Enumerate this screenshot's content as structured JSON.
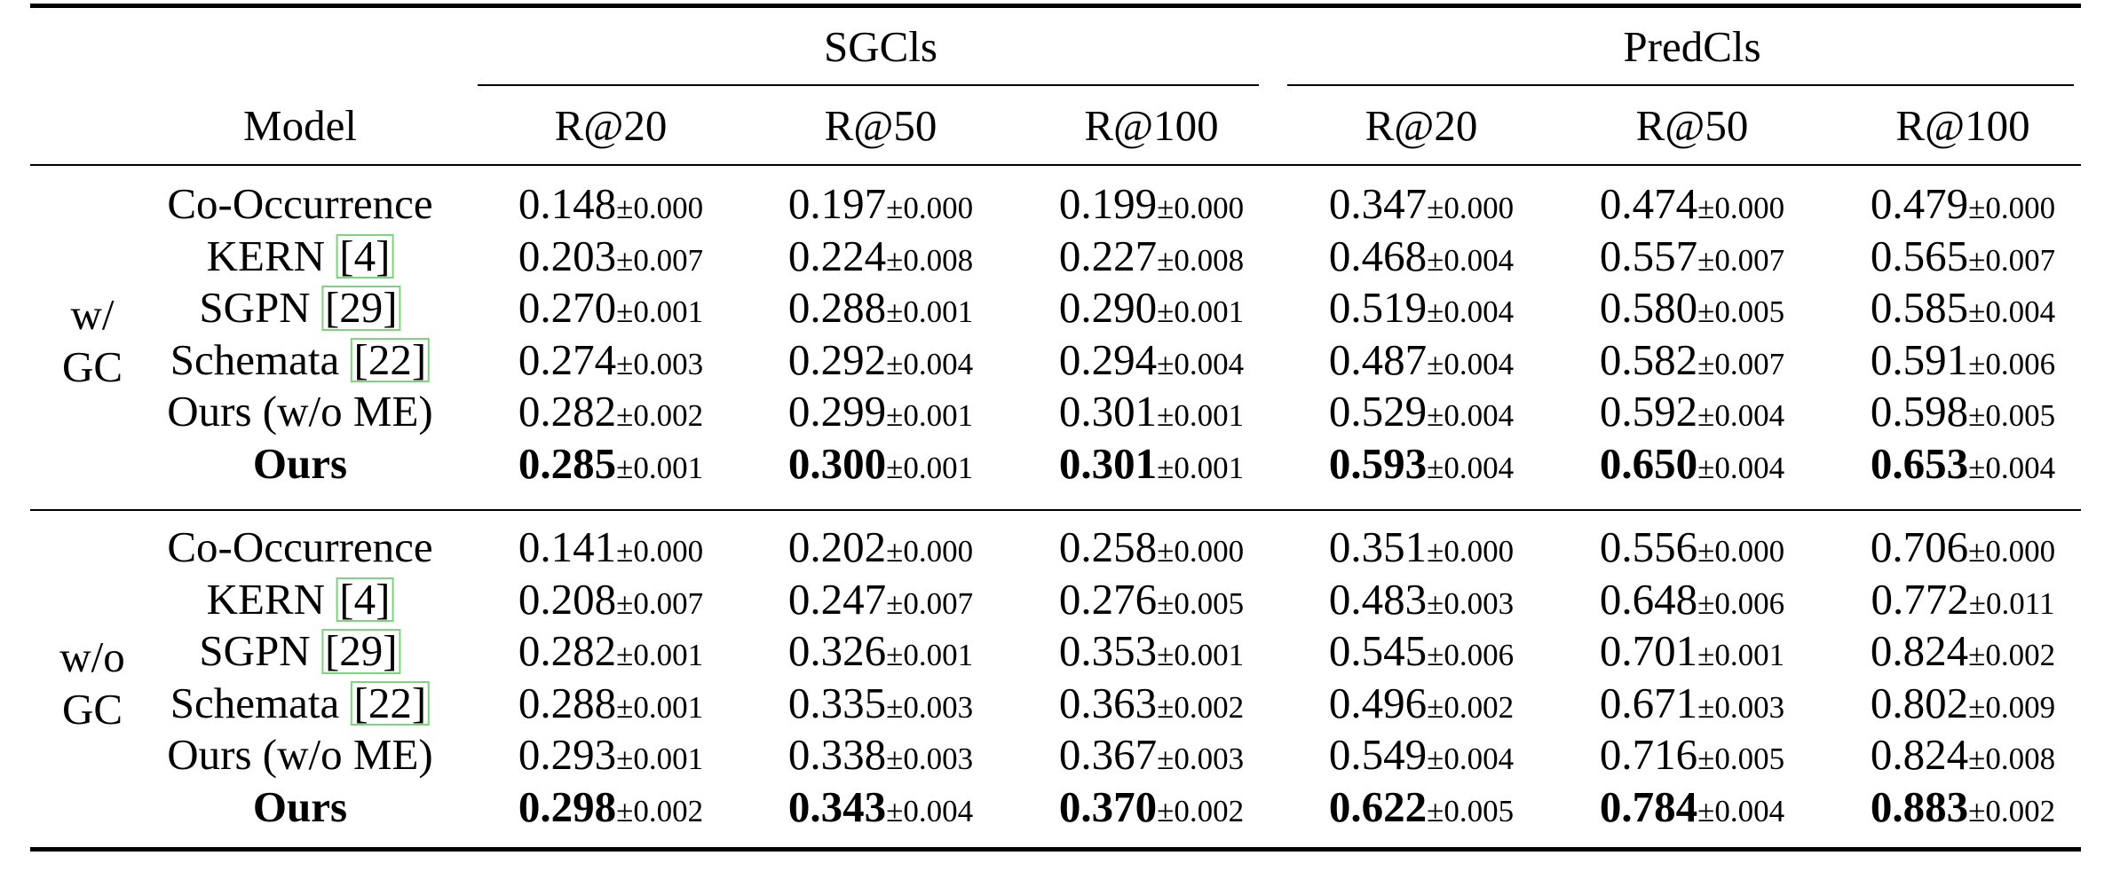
{
  "table": {
    "groups": [
      {
        "label": "SGCls",
        "columns": [
          "R@20",
          "R@50",
          "R@100"
        ]
      },
      {
        "label": "PredCls",
        "columns": [
          "R@20",
          "R@50",
          "R@100"
        ]
      }
    ],
    "model_header": "Model",
    "sections": [
      {
        "group_line1": "w/",
        "group_line2": "GC",
        "rows": [
          {
            "model": "Co-Occurrence",
            "cite": "",
            "bold": false,
            "values": [
              [
                "0.148",
                "±0.000"
              ],
              [
                "0.197",
                "±0.000"
              ],
              [
                "0.199",
                "±0.000"
              ],
              [
                "0.347",
                "±0.000"
              ],
              [
                "0.474",
                "±0.000"
              ],
              [
                "0.479",
                "±0.000"
              ]
            ]
          },
          {
            "model": "KERN ",
            "cite": "4",
            "bold": false,
            "values": [
              [
                "0.203",
                "±0.007"
              ],
              [
                "0.224",
                "±0.008"
              ],
              [
                "0.227",
                "±0.008"
              ],
              [
                "0.468",
                "±0.004"
              ],
              [
                "0.557",
                "±0.007"
              ],
              [
                "0.565",
                "±0.007"
              ]
            ]
          },
          {
            "model": "SGPN ",
            "cite": "29",
            "bold": false,
            "values": [
              [
                "0.270",
                "±0.001"
              ],
              [
                "0.288",
                "±0.001"
              ],
              [
                "0.290",
                "±0.001"
              ],
              [
                "0.519",
                "±0.004"
              ],
              [
                "0.580",
                "±0.005"
              ],
              [
                "0.585",
                "±0.004"
              ]
            ]
          },
          {
            "model": "Schemata ",
            "cite": "22",
            "bold": false,
            "values": [
              [
                "0.274",
                "±0.003"
              ],
              [
                "0.292",
                "±0.004"
              ],
              [
                "0.294",
                "±0.004"
              ],
              [
                "0.487",
                "±0.004"
              ],
              [
                "0.582",
                "±0.007"
              ],
              [
                "0.591",
                "±0.006"
              ]
            ]
          },
          {
            "model": "Ours (w/o ME)",
            "cite": "",
            "bold": false,
            "values": [
              [
                "0.282",
                "±0.002"
              ],
              [
                "0.299",
                "±0.001"
              ],
              [
                "0.301",
                "±0.001"
              ],
              [
                "0.529",
                "±0.004"
              ],
              [
                "0.592",
                "±0.004"
              ],
              [
                "0.598",
                "±0.005"
              ]
            ]
          },
          {
            "model": "Ours",
            "cite": "",
            "bold": true,
            "values": [
              [
                "0.285",
                "±0.001"
              ],
              [
                "0.300",
                "±0.001"
              ],
              [
                "0.301",
                "±0.001"
              ],
              [
                "0.593",
                "±0.004"
              ],
              [
                "0.650",
                "±0.004"
              ],
              [
                "0.653",
                "±0.004"
              ]
            ]
          }
        ]
      },
      {
        "group_line1": "w/o",
        "group_line2": "GC",
        "rows": [
          {
            "model": "Co-Occurrence",
            "cite": "",
            "bold": false,
            "values": [
              [
                "0.141",
                "±0.000"
              ],
              [
                "0.202",
                "±0.000"
              ],
              [
                "0.258",
                "±0.000"
              ],
              [
                "0.351",
                "±0.000"
              ],
              [
                "0.556",
                "±0.000"
              ],
              [
                "0.706",
                "±0.000"
              ]
            ]
          },
          {
            "model": "KERN ",
            "cite": "4",
            "bold": false,
            "values": [
              [
                "0.208",
                "±0.007"
              ],
              [
                "0.247",
                "±0.007"
              ],
              [
                "0.276",
                "±0.005"
              ],
              [
                "0.483",
                "±0.003"
              ],
              [
                "0.648",
                "±0.006"
              ],
              [
                "0.772",
                "±0.011"
              ]
            ]
          },
          {
            "model": "SGPN ",
            "cite": "29",
            "bold": false,
            "values": [
              [
                "0.282",
                "±0.001"
              ],
              [
                "0.326",
                "±0.001"
              ],
              [
                "0.353",
                "±0.001"
              ],
              [
                "0.545",
                "±0.006"
              ],
              [
                "0.701",
                "±0.001"
              ],
              [
                "0.824",
                "±0.002"
              ]
            ]
          },
          {
            "model": "Schemata ",
            "cite": "22",
            "bold": false,
            "values": [
              [
                "0.288",
                "±0.001"
              ],
              [
                "0.335",
                "±0.003"
              ],
              [
                "0.363",
                "±0.002"
              ],
              [
                "0.496",
                "±0.002"
              ],
              [
                "0.671",
                "±0.003"
              ],
              [
                "0.802",
                "±0.009"
              ]
            ]
          },
          {
            "model": "Ours (w/o ME)",
            "cite": "",
            "bold": false,
            "values": [
              [
                "0.293",
                "±0.001"
              ],
              [
                "0.338",
                "±0.003"
              ],
              [
                "0.367",
                "±0.003"
              ],
              [
                "0.549",
                "±0.004"
              ],
              [
                "0.716",
                "±0.005"
              ],
              [
                "0.824",
                "±0.008"
              ]
            ]
          },
          {
            "model": "Ours",
            "cite": "",
            "bold": true,
            "values": [
              [
                "0.298",
                "±0.002"
              ],
              [
                "0.343",
                "±0.004"
              ],
              [
                "0.370",
                "±0.002"
              ],
              [
                "0.622",
                "±0.005"
              ],
              [
                "0.784",
                "±0.004"
              ],
              [
                "0.883",
                "±0.002"
              ]
            ]
          }
        ]
      }
    ]
  }
}
